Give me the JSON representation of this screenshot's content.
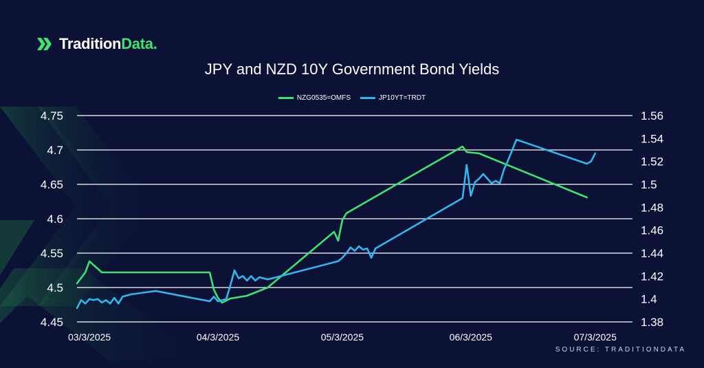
{
  "brand": {
    "name_main": "Tradition",
    "name_accent": "Data."
  },
  "chart_data": {
    "type": "line",
    "title": "JPY and NZD 10Y Government Bond Yields",
    "source": "SOURCE: TRADITIONDATA",
    "x_ticks": [
      "03/3/2025",
      "04/3/2025",
      "05/3/2025",
      "06/3/2025",
      "07/3/2025"
    ],
    "xlim": [
      "2025-02-28",
      "2025-07-12"
    ],
    "left_axis": {
      "ylim": [
        4.45,
        4.75
      ],
      "ticks": [
        "4.75",
        "4.7",
        "4.65",
        "4.6",
        "4.55",
        "4.5",
        "4.45"
      ]
    },
    "right_axis": {
      "ylim": [
        1.38,
        1.56
      ],
      "ticks": [
        "1.56",
        "1.54",
        "1.52",
        "1.5",
        "1.48",
        "1.46",
        "1.44",
        "1.42",
        "1.4",
        "1.38"
      ]
    },
    "grid": true,
    "legend_position": "top-center",
    "series": [
      {
        "name": "NZG0535=OMFS",
        "axis": "left",
        "color": "#3ee46d",
        "points": [
          [
            "2025-02-28",
            4.506
          ],
          [
            "2025-03-02",
            4.522
          ],
          [
            "2025-03-03",
            4.538
          ],
          [
            "2025-03-06",
            4.522
          ],
          [
            "2025-03-13",
            4.522
          ],
          [
            "2025-04-01",
            4.522
          ],
          [
            "2025-04-02",
            4.497
          ],
          [
            "2025-04-03",
            4.485
          ],
          [
            "2025-04-04",
            4.478
          ],
          [
            "2025-04-06",
            4.484
          ],
          [
            "2025-04-10",
            4.488
          ],
          [
            "2025-04-15",
            4.5
          ],
          [
            "2025-05-01",
            4.581
          ],
          [
            "2025-05-02",
            4.568
          ],
          [
            "2025-05-03",
            4.598
          ],
          [
            "2025-05-04",
            4.608
          ],
          [
            "2025-06-01",
            4.705
          ],
          [
            "2025-06-02",
            4.697
          ],
          [
            "2025-06-05",
            4.695
          ],
          [
            "2025-07-01",
            4.631
          ]
        ]
      },
      {
        "name": "JP10YT=TRDT",
        "axis": "right",
        "color": "#33b6ee",
        "points": [
          [
            "2025-02-28",
            1.392
          ],
          [
            "2025-03-01",
            1.399
          ],
          [
            "2025-03-02",
            1.396
          ],
          [
            "2025-03-03",
            1.4
          ],
          [
            "2025-03-04",
            1.399
          ],
          [
            "2025-03-05",
            1.4
          ],
          [
            "2025-03-06",
            1.397
          ],
          [
            "2025-03-07",
            1.399
          ],
          [
            "2025-03-08",
            1.396
          ],
          [
            "2025-03-09",
            1.401
          ],
          [
            "2025-03-10",
            1.396
          ],
          [
            "2025-03-11",
            1.402
          ],
          [
            "2025-03-13",
            1.404
          ],
          [
            "2025-03-19",
            1.407
          ],
          [
            "2025-04-01",
            1.398
          ],
          [
            "2025-04-02",
            1.402
          ],
          [
            "2025-04-03",
            1.398
          ],
          [
            "2025-04-05",
            1.4
          ],
          [
            "2025-04-06",
            1.412
          ],
          [
            "2025-04-07",
            1.425
          ],
          [
            "2025-04-08",
            1.418
          ],
          [
            "2025-04-09",
            1.42
          ],
          [
            "2025-04-10",
            1.416
          ],
          [
            "2025-04-11",
            1.42
          ],
          [
            "2025-04-12",
            1.416
          ],
          [
            "2025-04-13",
            1.419
          ],
          [
            "2025-04-15",
            1.417
          ],
          [
            "2025-05-01",
            1.432
          ],
          [
            "2025-05-02",
            1.433
          ],
          [
            "2025-05-03",
            1.436
          ],
          [
            "2025-05-04",
            1.44
          ],
          [
            "2025-05-05",
            1.445
          ],
          [
            "2025-05-06",
            1.442
          ],
          [
            "2025-05-07",
            1.446
          ],
          [
            "2025-05-08",
            1.443
          ],
          [
            "2025-05-09",
            1.444
          ],
          [
            "2025-05-10",
            1.436
          ],
          [
            "2025-05-11",
            1.444
          ],
          [
            "2025-06-01",
            1.488
          ],
          [
            "2025-06-02",
            1.517
          ],
          [
            "2025-06-03",
            1.49
          ],
          [
            "2025-06-04",
            1.502
          ],
          [
            "2025-06-05",
            1.505
          ],
          [
            "2025-06-06",
            1.509
          ],
          [
            "2025-06-07",
            1.505
          ],
          [
            "2025-06-08",
            1.501
          ],
          [
            "2025-06-09",
            1.503
          ],
          [
            "2025-06-10",
            1.501
          ],
          [
            "2025-06-11",
            1.513
          ],
          [
            "2025-06-12",
            1.521
          ],
          [
            "2025-06-14",
            1.539
          ],
          [
            "2025-07-01",
            1.518
          ],
          [
            "2025-07-02",
            1.52
          ],
          [
            "2025-07-03",
            1.527
          ]
        ]
      }
    ]
  }
}
